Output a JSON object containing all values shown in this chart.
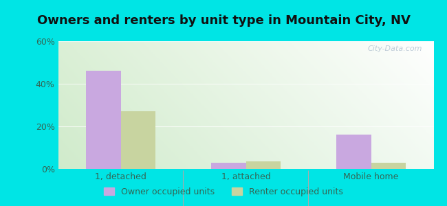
{
  "title": "Owners and renters by unit type in Mountain City, NV",
  "categories": [
    "1, detached",
    "1, attached",
    "Mobile home"
  ],
  "owner_values": [
    46.0,
    3.0,
    16.0
  ],
  "renter_values": [
    27.0,
    3.5,
    3.0
  ],
  "owner_color": "#c9a8e0",
  "renter_color": "#c8d4a0",
  "ylim": [
    0,
    60
  ],
  "yticks": [
    0,
    20,
    40,
    60
  ],
  "ytick_labels": [
    "0%",
    "20%",
    "40%",
    "60%"
  ],
  "bar_width": 0.28,
  "outer_bg": "#00e5e5",
  "plot_bg_color": "#e8f4e4",
  "watermark": "City-Data.com",
  "legend_owner": "Owner occupied units",
  "legend_renter": "Renter occupied units",
  "title_fontsize": 13,
  "tick_label_color": "#336655"
}
